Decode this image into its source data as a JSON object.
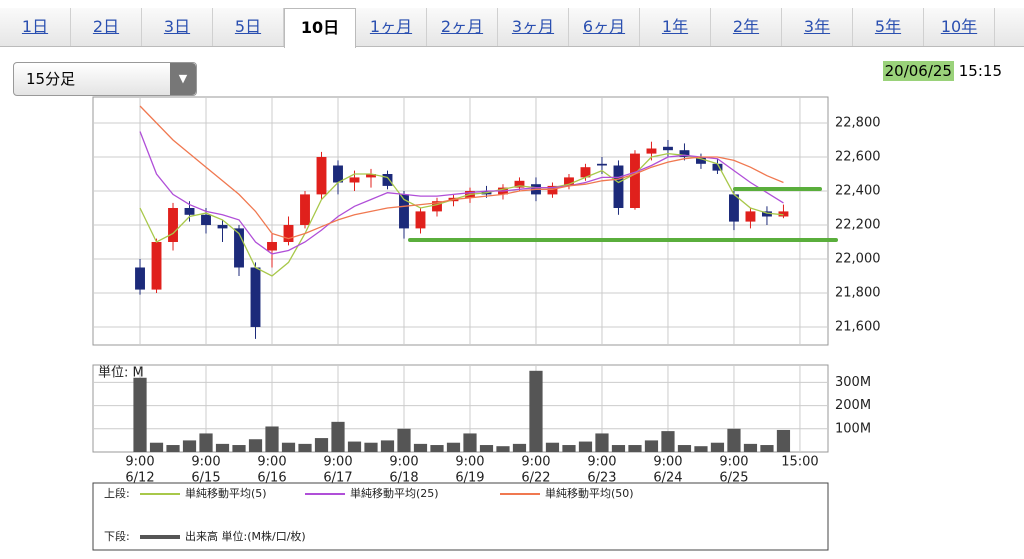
{
  "tabs": {
    "items": [
      "1日",
      "2日",
      "3日",
      "5日",
      "10日",
      "1ヶ月",
      "2ヶ月",
      "3ヶ月",
      "6ヶ月",
      "1年",
      "2年",
      "3年",
      "5年",
      "10年"
    ],
    "active": 4
  },
  "dropdown": "15分足",
  "timestamp": {
    "date": "20/06/25",
    "time": "15:15"
  },
  "chart_data": [
    {
      "type": "candlestick",
      "legend_label": "上段:",
      "x": [
        0,
        1,
        2,
        3,
        4,
        5,
        6,
        7,
        8,
        9,
        10,
        11,
        12,
        13,
        14,
        15,
        16,
        17,
        18,
        19,
        20,
        21,
        22,
        23,
        24,
        25,
        26,
        27,
        28,
        29,
        30,
        31,
        32,
        33,
        34,
        35,
        36,
        37,
        38,
        39
      ],
      "open": [
        21950,
        21820,
        22100,
        22300,
        22260,
        22200,
        22180,
        21950,
        22050,
        22100,
        22200,
        22380,
        22550,
        22450,
        22480,
        22500,
        22380,
        22180,
        22280,
        22340,
        22360,
        22400,
        22380,
        22420,
        22440,
        22380,
        22430,
        22480,
        22560,
        22550,
        22300,
        22620,
        22660,
        22640,
        22600,
        22560,
        22380,
        22220,
        22280,
        22250
      ],
      "high": [
        22000,
        22120,
        22330,
        22340,
        22300,
        22230,
        22200,
        21980,
        22150,
        22250,
        22400,
        22630,
        22580,
        22520,
        22530,
        22520,
        22400,
        22300,
        22360,
        22380,
        22420,
        22430,
        22440,
        22480,
        22480,
        22450,
        22500,
        22560,
        22600,
        22580,
        22640,
        22690,
        22700,
        22680,
        22620,
        22590,
        22400,
        22300,
        22310,
        22320
      ],
      "low": [
        21790,
        21800,
        22050,
        22220,
        22150,
        22100,
        21900,
        21530,
        21950,
        22080,
        22180,
        22350,
        22380,
        22400,
        22420,
        22410,
        22120,
        22150,
        22250,
        22310,
        22330,
        22360,
        22350,
        22400,
        22340,
        22360,
        22410,
        22460,
        22500,
        22260,
        22290,
        22580,
        22600,
        22580,
        22530,
        22500,
        22170,
        22180,
        22200,
        22240
      ],
      "close": [
        21820,
        22100,
        22300,
        22260,
        22200,
        22180,
        21950,
        21600,
        22100,
        22200,
        22380,
        22600,
        22450,
        22480,
        22500,
        22430,
        22180,
        22280,
        22340,
        22360,
        22400,
        22380,
        22420,
        22460,
        22380,
        22430,
        22480,
        22540,
        22550,
        22300,
        22620,
        22650,
        22640,
        22600,
        22560,
        22520,
        22220,
        22280,
        22250,
        22280
      ],
      "up_color": "#e0201c",
      "down_color": "#1c2a7a",
      "series": [
        {
          "name": "単純移動平均(5)",
          "color": "#a8c84a",
          "values": [
            22300,
            22100,
            22150,
            22250,
            22270,
            22230,
            22150,
            21950,
            21900,
            21980,
            22150,
            22350,
            22450,
            22500,
            22500,
            22480,
            22350,
            22300,
            22320,
            22350,
            22380,
            22390,
            22410,
            22430,
            22420,
            22420,
            22440,
            22480,
            22520,
            22450,
            22500,
            22600,
            22620,
            22610,
            22590,
            22560,
            22380,
            22300,
            22270,
            22260
          ]
        },
        {
          "name": "単純移動平均(25)",
          "color": "#b04fd8",
          "values": [
            22750,
            22500,
            22380,
            22320,
            22280,
            22260,
            22230,
            22100,
            22030,
            22050,
            22100,
            22170,
            22250,
            22310,
            22350,
            22390,
            22380,
            22370,
            22370,
            22380,
            22390,
            22400,
            22400,
            22410,
            22420,
            22420,
            22430,
            22450,
            22480,
            22480,
            22510,
            22550,
            22600,
            22610,
            22600,
            22590,
            22520,
            22450,
            22390,
            22330
          ]
        },
        {
          "name": "単純移動平均(50)",
          "color": "#f07850",
          "values": [
            22900,
            22800,
            22700,
            22620,
            22540,
            22460,
            22380,
            22280,
            22150,
            22120,
            22150,
            22190,
            22230,
            22260,
            22280,
            22300,
            22310,
            22320,
            22330,
            22350,
            22360,
            22370,
            22380,
            22400,
            22410,
            22410,
            22430,
            22440,
            22460,
            22470,
            22500,
            22540,
            22570,
            22590,
            22600,
            22600,
            22580,
            22540,
            22490,
            22450
          ]
        }
      ],
      "xlim": [
        -2.85,
        41.7
      ],
      "ylim": [
        21494,
        22953
      ],
      "yticks": [
        {
          "value": 21600,
          "label": "21,600"
        },
        {
          "value": 21800,
          "label": "21,800"
        },
        {
          "value": 22000,
          "label": "22,000"
        },
        {
          "value": 22200,
          "label": "22,200"
        },
        {
          "value": 22400,
          "label": "22,400"
        },
        {
          "value": 22600,
          "label": "22,600"
        },
        {
          "value": 22800,
          "label": "22,800"
        }
      ],
      "grid": true
    },
    {
      "type": "bar",
      "title": "単位: M",
      "legend_label": "下段:",
      "name": "出来高 単位:(M株/口/枚)",
      "color": "#555555",
      "x": [
        0,
        1,
        2,
        3,
        4,
        5,
        6,
        7,
        8,
        9,
        10,
        11,
        12,
        13,
        14,
        15,
        16,
        17,
        18,
        19,
        20,
        21,
        22,
        23,
        24,
        25,
        26,
        27,
        28,
        29,
        30,
        31,
        32,
        33,
        34,
        35,
        36,
        37,
        38,
        39
      ],
      "values": [
        320,
        40,
        30,
        50,
        80,
        35,
        30,
        55,
        110,
        40,
        35,
        60,
        130,
        45,
        40,
        50,
        100,
        35,
        30,
        40,
        80,
        30,
        25,
        35,
        350,
        40,
        30,
        45,
        80,
        30,
        30,
        50,
        90,
        30,
        25,
        40,
        100,
        35,
        30,
        95
      ],
      "xlim": [
        -2.85,
        41.7
      ],
      "ylim": [
        0,
        375
      ],
      "yticks": [
        {
          "value": 100,
          "label": "100M"
        },
        {
          "value": 200,
          "label": "200M"
        },
        {
          "value": 300,
          "label": "300M"
        }
      ],
      "xticks": [
        {
          "value": 0,
          "label": [
            "9:00",
            "6/12"
          ]
        },
        {
          "value": 4,
          "label": [
            "9:00",
            "6/15"
          ]
        },
        {
          "value": 8,
          "label": [
            "9:00",
            "6/16"
          ]
        },
        {
          "value": 12,
          "label": [
            "9:00",
            "6/17"
          ]
        },
        {
          "value": 16,
          "label": [
            "9:00",
            "6/18"
          ]
        },
        {
          "value": 20,
          "label": [
            "9:00",
            "6/19"
          ]
        },
        {
          "value": 24,
          "label": [
            "9:00",
            "6/22"
          ]
        },
        {
          "value": 28,
          "label": [
            "9:00",
            "6/23"
          ]
        },
        {
          "value": 32,
          "label": [
            "9:00",
            "6/24"
          ]
        },
        {
          "value": 36,
          "label": [
            "9:00",
            "6/25"
          ]
        },
        {
          "value": 40,
          "label": [
            "15:00"
          ]
        }
      ],
      "grid": true
    }
  ]
}
